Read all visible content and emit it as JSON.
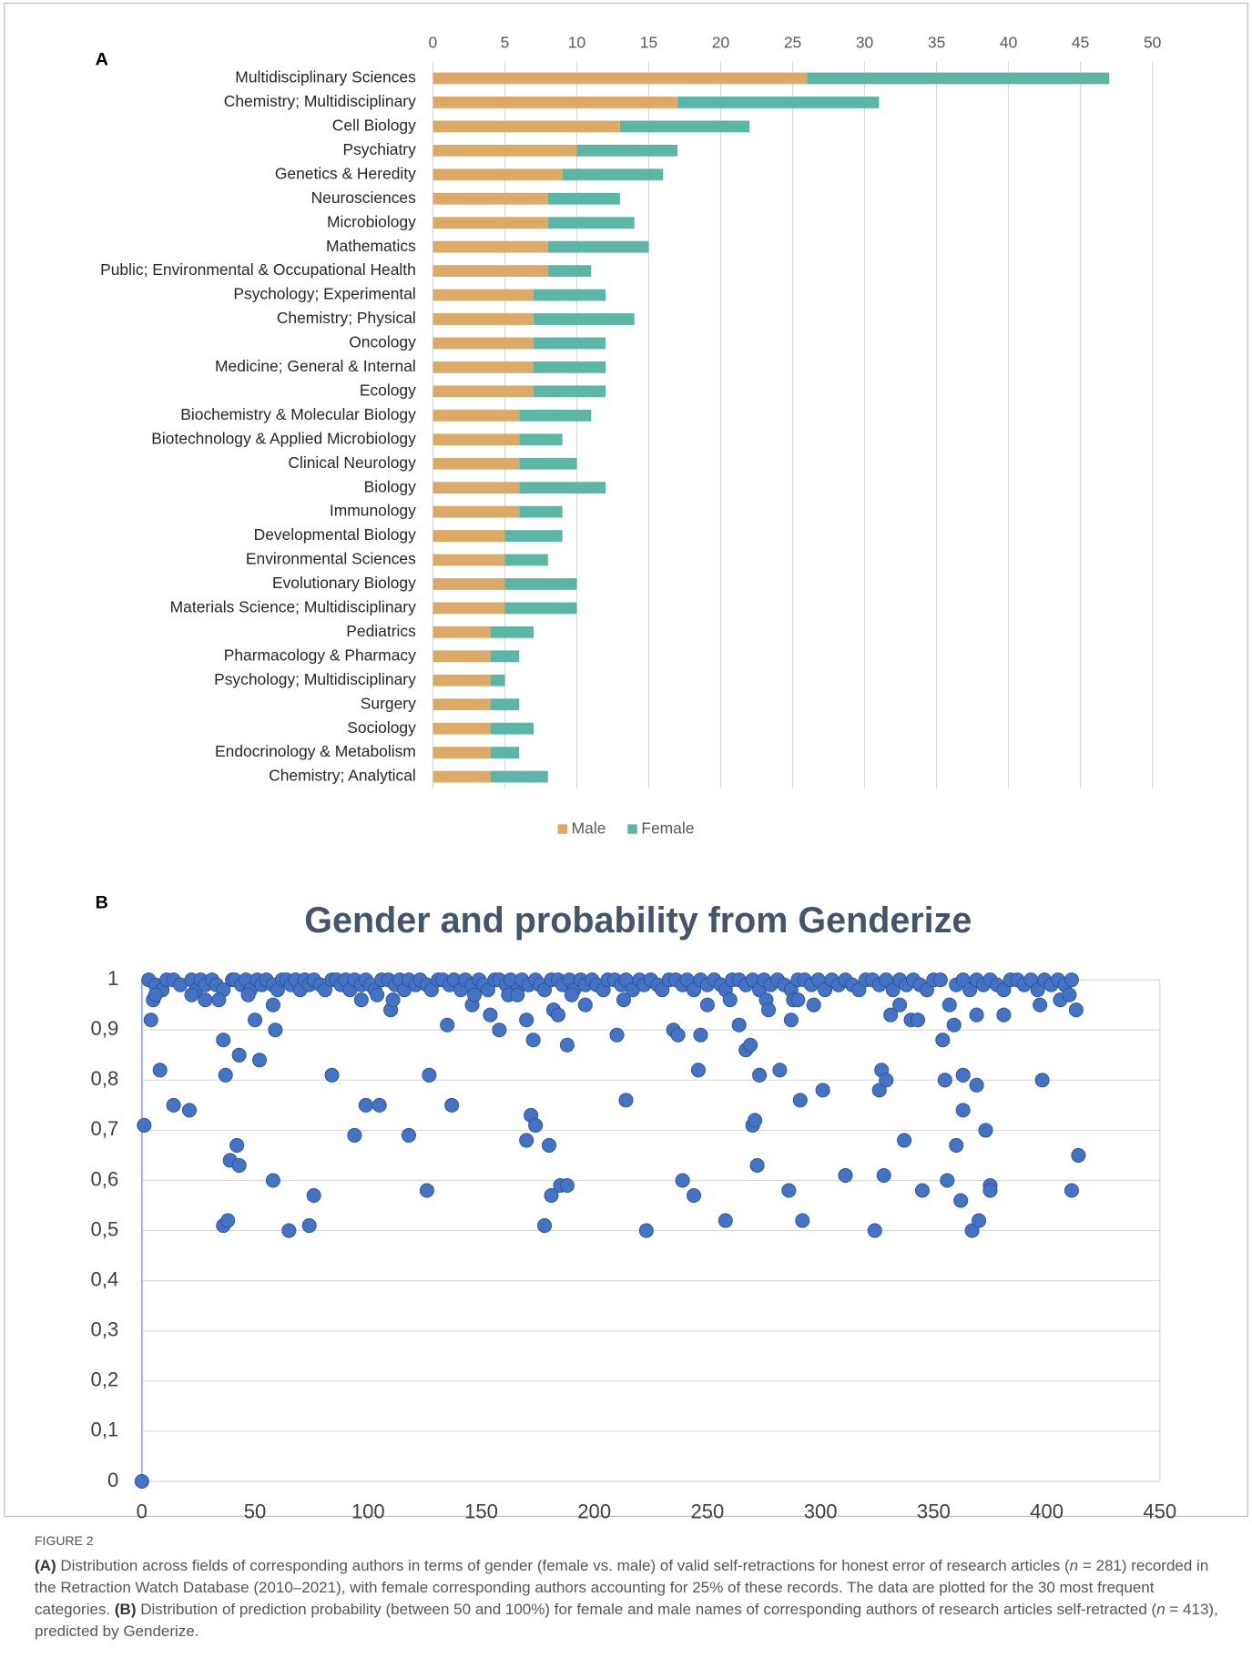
{
  "chart_data": [
    {
      "type": "bar",
      "panel": "A",
      "horizontal": true,
      "stacked": true,
      "categories": [
        "Multidisciplinary Sciences",
        "Chemistry; Multidisciplinary",
        "Cell Biology",
        "Psychiatry",
        "Genetics & Heredity",
        "Neurosciences",
        "Microbiology",
        "Mathematics",
        "Public; Environmental & Occupational Health",
        "Psychology; Experimental",
        "Chemistry; Physical",
        "Oncology",
        "Medicine; General & Internal",
        "Ecology",
        "Biochemistry & Molecular Biology",
        "Biotechnology & Applied Microbiology",
        "Clinical Neurology",
        "Biology",
        "Immunology",
        "Developmental Biology",
        "Environmental Sciences",
        "Evolutionary Biology",
        "Materials Science; Multidisciplinary",
        "Pediatrics",
        "Pharmacology & Pharmacy",
        "Psychology; Multidisciplinary",
        "Surgery",
        "Sociology",
        "Endocrinology & Metabolism",
        "Chemistry; Analytical"
      ],
      "series": [
        {
          "name": "Male",
          "color": "#dcaa66",
          "values": [
            26,
            17,
            13,
            10,
            9,
            8,
            8,
            8,
            8,
            7,
            7,
            7,
            7,
            7,
            6,
            6,
            6,
            6,
            6,
            5,
            5,
            5,
            5,
            4,
            4,
            4,
            4,
            4,
            4,
            4
          ]
        },
        {
          "name": "Female",
          "color": "#5bb6a6",
          "values": [
            21,
            14,
            9,
            7,
            7,
            5,
            6,
            7,
            3,
            5,
            7,
            5,
            5,
            5,
            5,
            3,
            4,
            6,
            3,
            4,
            3,
            5,
            5,
            3,
            2,
            1,
            2,
            3,
            2,
            4
          ]
        }
      ],
      "xlim": [
        0,
        50
      ],
      "xticks": [
        0,
        5,
        10,
        15,
        20,
        25,
        30,
        35,
        40,
        45,
        50
      ],
      "grid": true,
      "legend": "bottom"
    },
    {
      "type": "scatter",
      "panel": "B",
      "title": "Gender and probability from Genderize",
      "color": "#4472c4",
      "x": [
        3,
        6,
        9,
        11,
        14,
        17,
        22,
        24,
        26,
        28,
        31,
        33,
        36,
        40,
        41,
        44,
        46,
        48,
        51,
        53,
        55,
        58,
        60,
        62,
        64,
        66,
        68,
        70,
        72,
        74,
        76,
        79,
        81,
        84,
        86,
        88,
        90,
        92,
        94,
        97,
        99,
        101,
        103,
        106,
        109,
        112,
        114,
        116,
        118,
        121,
        123,
        126,
        128,
        131,
        133,
        136,
        138,
        141,
        143,
        146,
        149,
        151,
        153,
        156,
        158,
        161,
        163,
        166,
        168,
        171,
        174,
        176,
        178,
        181,
        184,
        186,
        189,
        191,
        194,
        196,
        199,
        201,
        204,
        206,
        209,
        212,
        214,
        217,
        220,
        222,
        225,
        228,
        230,
        233,
        236,
        239,
        241,
        244,
        247,
        250,
        253,
        256,
        258,
        261,
        264,
        267,
        270,
        273,
        275,
        278,
        281,
        284,
        287,
        290,
        293,
        296,
        299,
        302,
        305,
        308,
        311,
        314,
        317,
        320,
        323,
        326,
        329,
        332,
        335,
        338,
        341,
        344,
        347,
        350,
        353,
        360,
        363,
        366,
        369,
        372,
        375,
        378,
        381,
        384,
        387,
        390,
        393,
        396,
        399,
        402,
        405,
        408,
        411,
        0,
        1,
        4,
        5,
        6,
        8,
        14,
        21,
        22,
        28,
        34,
        36,
        36,
        37,
        38,
        39,
        42,
        43,
        43,
        47,
        50,
        52,
        58,
        58,
        59,
        65,
        74,
        76,
        84,
        94,
        97,
        99,
        105,
        104,
        110,
        111,
        118,
        126,
        127,
        135,
        137,
        146,
        147,
        154,
        158,
        162,
        166,
        170,
        172,
        173,
        174,
        170,
        178,
        180,
        181,
        182,
        184,
        185,
        188,
        188,
        190,
        196,
        210,
        214,
        213,
        223,
        235,
        237,
        239,
        244,
        246,
        247,
        250,
        258,
        260,
        264,
        267,
        269,
        270,
        271,
        272,
        273,
        276,
        277,
        282,
        286,
        287,
        288,
        290,
        291,
        292,
        297,
        301,
        311,
        326,
        324,
        327,
        328,
        329,
        331,
        335,
        337,
        340,
        343,
        345,
        354,
        355,
        356,
        357,
        359,
        360,
        362,
        363,
        363,
        367,
        369,
        369,
        370,
        373,
        375,
        375,
        381,
        397,
        398,
        406,
        410,
        411,
        413,
        414
      ],
      "values": [
        1,
        0.99,
        0.98,
        1,
        1,
        0.99,
        1,
        0.98,
        1,
        0.99,
        1,
        0.99,
        0.98,
        1,
        1,
        0.99,
        1,
        0.98,
        1,
        0.99,
        1,
        0.99,
        0.98,
        1,
        1,
        0.99,
        1,
        0.98,
        1,
        0.99,
        1,
        0.99,
        0.98,
        1,
        1,
        0.99,
        1,
        0.98,
        1,
        0.99,
        1,
        0.99,
        0.98,
        1,
        1,
        0.99,
        1,
        0.98,
        1,
        0.99,
        1,
        0.99,
        0.98,
        1,
        1,
        0.99,
        1,
        0.98,
        1,
        0.99,
        1,
        0.99,
        0.98,
        1,
        1,
        0.99,
        1,
        0.98,
        1,
        0.99,
        1,
        0.99,
        0.98,
        1,
        1,
        0.99,
        1,
        0.98,
        1,
        0.99,
        1,
        0.99,
        0.98,
        1,
        1,
        0.99,
        1,
        0.98,
        1,
        0.99,
        1,
        0.99,
        0.98,
        1,
        1,
        0.99,
        1,
        0.98,
        1,
        0.99,
        1,
        0.99,
        0.98,
        1,
        1,
        0.99,
        1,
        0.98,
        1,
        0.99,
        1,
        0.99,
        0.98,
        1,
        1,
        0.99,
        1,
        0.98,
        1,
        0.99,
        1,
        0.99,
        0.98,
        1,
        1,
        0.99,
        1,
        0.98,
        1,
        0.99,
        1,
        0.99,
        0.98,
        1,
        1,
        0.99,
        1,
        0.98,
        1,
        0.99,
        1,
        0.99,
        0.98,
        1,
        1,
        0.99,
        1,
        0.98,
        1,
        0.99,
        1,
        0.99,
        1,
        0,
        0.71,
        0.92,
        0.96,
        0.97,
        0.82,
        0.75,
        0.74,
        0.97,
        0.96,
        0.96,
        0.88,
        0.51,
        0.81,
        0.52,
        0.64,
        0.67,
        0.63,
        0.85,
        0.97,
        0.92,
        0.84,
        0.95,
        0.6,
        0.9,
        0.5,
        0.51,
        0.57,
        0.81,
        0.69,
        0.96,
        0.75,
        0.75,
        0.97,
        0.94,
        0.96,
        0.69,
        0.58,
        0.81,
        0.91,
        0.75,
        0.95,
        0.97,
        0.93,
        0.9,
        0.97,
        0.97,
        0.92,
        0.73,
        0.88,
        0.71,
        0.68,
        0.51,
        0.67,
        0.57,
        0.94,
        0.93,
        0.59,
        0.59,
        0.87,
        0.97,
        0.95,
        0.89,
        0.76,
        0.96,
        0.5,
        0.9,
        0.89,
        0.6,
        0.57,
        0.82,
        0.89,
        0.95,
        0.52,
        0.96,
        0.91,
        0.86,
        0.87,
        0.71,
        0.72,
        0.63,
        0.81,
        0.96,
        0.94,
        0.82,
        0.58,
        0.92,
        0.96,
        0.96,
        0.76,
        0.52,
        0.95,
        0.78,
        0.61,
        0.78,
        0.5,
        0.82,
        0.61,
        0.8,
        0.93,
        0.95,
        0.68,
        0.92,
        0.92,
        0.58,
        0.88,
        0.8,
        0.6,
        0.95,
        0.91,
        0.67,
        0.56,
        0.74,
        0.81,
        0.5,
        0.79,
        0.93,
        0.52,
        0.7,
        0.59,
        0.58,
        0.93,
        0.95,
        0.8,
        0.96,
        0.97,
        0.58,
        0.94,
        0.65
      ],
      "xlim": [
        0,
        450
      ],
      "xticks": [
        0,
        50,
        100,
        150,
        200,
        250,
        300,
        350,
        400,
        450
      ],
      "ylim": [
        0,
        1
      ],
      "yticks": [
        0,
        {
          "value": 0.1,
          "label": "0,1"
        },
        {
          "value": 0.2,
          "label": "0,2"
        },
        {
          "value": 0.3,
          "label": "0,3"
        },
        {
          "value": 0.4,
          "label": "0,4"
        },
        {
          "value": 0.5,
          "label": "0,5"
        },
        {
          "value": 0.6,
          "label": "0,6"
        },
        {
          "value": 0.7,
          "label": "0,7"
        },
        {
          "value": 0.8,
          "label": "0,8"
        },
        {
          "value": 0.9,
          "label": "0,9"
        },
        1
      ],
      "grid": true
    }
  ],
  "caption": {
    "label": "FIGURE 2",
    "parts": [
      "(A)",
      " Distribution across fields of corresponding authors in terms of gender (female vs. male) of valid self-retractions for honest error of research articles (",
      "n",
      " = 281) recorded in the Retraction Watch Database (2010–2021), with female corresponding authors accounting for 25% of these records. The data are plotted for the 30 most frequent categories. ",
      "(B)",
      " Distribution of prediction probability (between 50 and 100%) for female and male names of corresponding authors of research articles self-retracted (",
      "n",
      " = 413), predicted by Genderize."
    ]
  }
}
